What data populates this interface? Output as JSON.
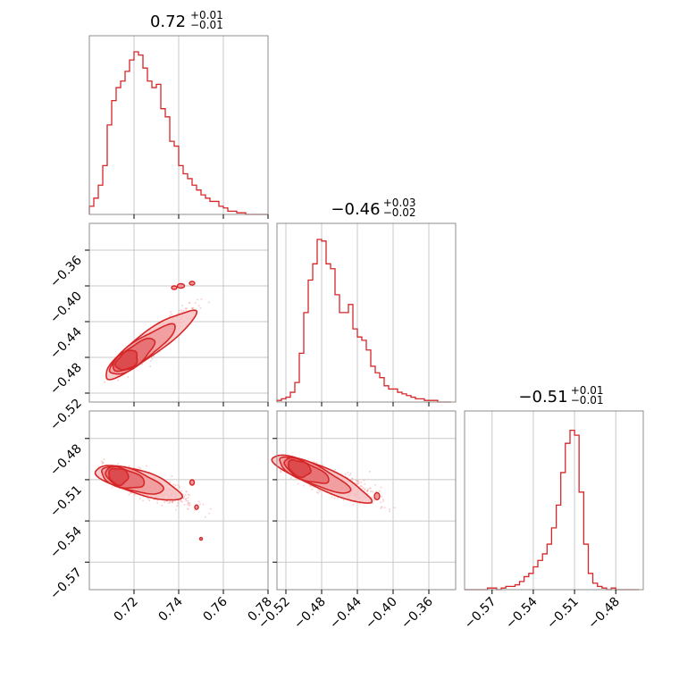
{
  "chart_data": {
    "type": "corner",
    "color": "#d62728",
    "parameters": [
      {
        "median": "0.72",
        "upper": "+0.01",
        "lower": "−0.01",
        "range": [
          0.7,
          0.78
        ],
        "ticks": [
          0.72,
          0.74,
          0.76,
          0.78
        ],
        "tick_labels": [
          "0.72",
          "0.74",
          "0.76",
          "0.78"
        ],
        "hist_bins": [
          0.7,
          0.7,
          0.702,
          0.702,
          0.704,
          0.704,
          0.706,
          0.706,
          0.708,
          0.708,
          0.71,
          0.71,
          0.712,
          0.712,
          0.714,
          0.714,
          0.716,
          0.716,
          0.718,
          0.718,
          0.72,
          0.72,
          0.722,
          0.722,
          0.724,
          0.724,
          0.726,
          0.726,
          0.728,
          0.728,
          0.73,
          0.73,
          0.732,
          0.732,
          0.734,
          0.734,
          0.736,
          0.736,
          0.738,
          0.738,
          0.74,
          0.74,
          0.742,
          0.742,
          0.744,
          0.744,
          0.746,
          0.746,
          0.748,
          0.748,
          0.75,
          0.75,
          0.752,
          0.752,
          0.754,
          0.754,
          0.756,
          0.756,
          0.758,
          0.758,
          0.76,
          0.76,
          0.762,
          0.762,
          0.764,
          0.764,
          0.766,
          0.766,
          0.768,
          0.768,
          0.77,
          0.77,
          0.772,
          0.772,
          0.774,
          0.774,
          0.776,
          0.776,
          0.778,
          0.778,
          0.78
        ],
        "hist_counts": [
          0.05,
          0.1,
          0.18,
          0.3,
          0.55,
          0.7,
          0.78,
          0.82,
          0.88,
          0.95,
          1.0,
          0.98,
          0.9,
          0.82,
          0.78,
          0.8,
          0.65,
          0.6,
          0.45,
          0.42,
          0.3,
          0.25,
          0.22,
          0.18,
          0.15,
          0.12,
          0.1,
          0.08,
          0.08,
          0.05,
          0.04,
          0.02,
          0.02,
          0.01,
          0.01,
          0.0,
          0.0,
          0.0,
          0.0,
          0.0
        ]
      },
      {
        "median": "−0.46",
        "upper": "+0.03",
        "lower": "−0.02",
        "range": [
          -0.53,
          -0.33
        ],
        "ticks": [
          -0.52,
          -0.48,
          -0.44,
          -0.4,
          -0.36
        ],
        "tick_labels": [
          "−0.52",
          "−0.48",
          "−0.44",
          "−0.40",
          "−0.36"
        ],
        "hist_bins": [
          -0.53,
          -0.525,
          -0.52,
          -0.515,
          -0.51,
          -0.505,
          -0.5,
          -0.495,
          -0.49,
          -0.485,
          -0.48,
          -0.475,
          -0.47,
          -0.465,
          -0.46,
          -0.455,
          -0.45,
          -0.445,
          -0.44,
          -0.435,
          -0.43,
          -0.425,
          -0.42,
          -0.415,
          -0.41,
          -0.405,
          -0.4,
          -0.395,
          -0.39,
          -0.385,
          -0.38,
          -0.375,
          -0.37,
          -0.365,
          -0.36,
          -0.355,
          -0.35,
          -0.345,
          -0.34,
          -0.335
        ],
        "hist_counts": [
          0.01,
          0.02,
          0.03,
          0.06,
          0.12,
          0.3,
          0.55,
          0.75,
          0.85,
          1.0,
          0.99,
          0.85,
          0.82,
          0.66,
          0.55,
          0.55,
          0.6,
          0.45,
          0.4,
          0.38,
          0.32,
          0.22,
          0.18,
          0.15,
          0.1,
          0.08,
          0.08,
          0.06,
          0.05,
          0.04,
          0.03,
          0.02,
          0.02,
          0.01,
          0.01,
          0.01,
          0.0,
          0.0,
          0.0,
          0.0
        ]
      },
      {
        "median": "−0.51",
        "upper": "+0.01",
        "lower": "−0.01",
        "range": [
          -0.59,
          -0.46
        ],
        "ticks": [
          -0.57,
          -0.54,
          -0.51,
          -0.48
        ],
        "tick_labels": [
          "−0.57",
          "−0.54",
          "−0.51",
          "−0.48"
        ],
        "hist_bins": [
          -0.59,
          -0.5867,
          -0.5833,
          -0.58,
          -0.5767,
          -0.5733,
          -0.57,
          -0.5667,
          -0.5633,
          -0.56,
          -0.5567,
          -0.5533,
          -0.55,
          -0.5467,
          -0.5433,
          -0.54,
          -0.5367,
          -0.5333,
          -0.53,
          -0.5267,
          -0.5233,
          -0.52,
          -0.5167,
          -0.5133,
          -0.51,
          -0.5067,
          -0.5033,
          -0.5,
          -0.4967,
          -0.4933,
          -0.49,
          -0.4867,
          -0.4833,
          -0.48,
          -0.4767,
          -0.4733,
          -0.47,
          -0.4667,
          -0.4633
        ],
        "hist_counts": [
          0.0,
          0.0,
          0.0,
          0.0,
          0.0,
          0.01,
          0.01,
          0.0,
          0.01,
          0.02,
          0.02,
          0.03,
          0.05,
          0.08,
          0.1,
          0.14,
          0.18,
          0.22,
          0.28,
          0.38,
          0.52,
          0.72,
          0.9,
          0.98,
          0.95,
          0.6,
          0.28,
          0.1,
          0.04,
          0.02,
          0.01,
          0.0,
          0.01,
          0.0,
          0.0,
          0.0,
          0.0,
          0.0,
          0.0
        ]
      }
    ],
    "correlations": {
      "p1_vs_p0": "positive",
      "p2_vs_p0": "negative",
      "p2_vs_p1": "negative"
    }
  }
}
